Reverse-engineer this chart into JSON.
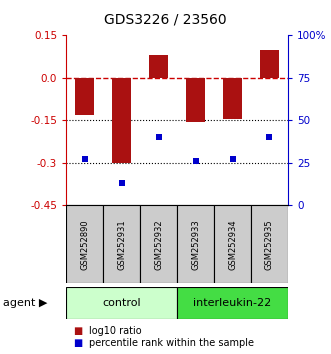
{
  "title": "GDS3226 / 23560",
  "samples": [
    "GSM252890",
    "GSM252931",
    "GSM252932",
    "GSM252933",
    "GSM252934",
    "GSM252935"
  ],
  "log10_ratio": [
    -0.13,
    -0.3,
    0.08,
    -0.155,
    -0.145,
    0.1
  ],
  "percentile_rank": [
    27,
    13,
    40,
    26,
    27,
    40
  ],
  "groups": [
    {
      "label": "control",
      "indices": [
        0,
        1,
        2
      ],
      "color": "#ccffcc"
    },
    {
      "label": "interleukin-22",
      "indices": [
        3,
        4,
        5
      ],
      "color": "#44dd44"
    }
  ],
  "ylim_left": [
    -0.45,
    0.15
  ],
  "ylim_right": [
    0,
    100
  ],
  "yticks_left": [
    0.15,
    0.0,
    -0.15,
    -0.3,
    -0.45
  ],
  "yticks_right": [
    100,
    75,
    50,
    25,
    0
  ],
  "bar_color": "#aa1111",
  "dot_color": "#0000cc",
  "dotted_lines": [
    -0.15,
    -0.3
  ],
  "legend_bar_label": "log10 ratio",
  "legend_dot_label": "percentile rank within the sample",
  "agent_label": "agent",
  "sample_box_color": "#cccccc",
  "figsize": [
    3.31,
    3.54
  ],
  "dpi": 100
}
